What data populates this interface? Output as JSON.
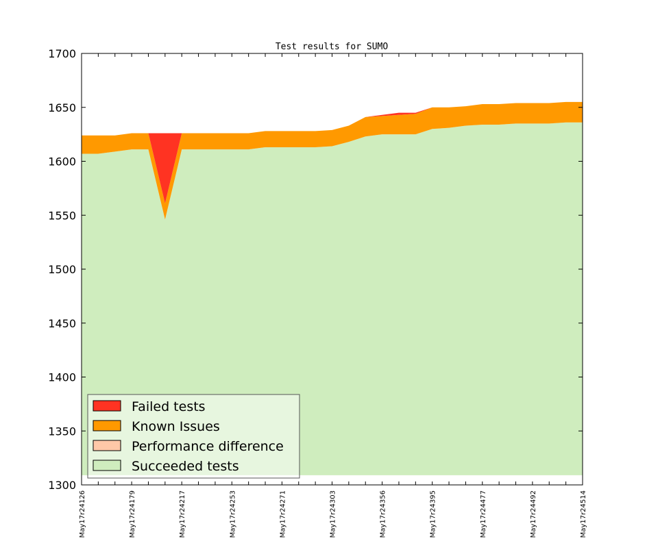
{
  "chart_data": {
    "type": "area",
    "title": "Test results for SUMO",
    "xlabel": "",
    "ylabel": "",
    "ylim": [
      1300,
      1700
    ],
    "yticks": [
      1300,
      1350,
      1400,
      1450,
      1500,
      1550,
      1600,
      1650,
      1700
    ],
    "x_index_range": [
      0,
      30
    ],
    "x_tick_labels": [
      {
        "i": 0,
        "label": "May17r24126"
      },
      {
        "i": 3,
        "label": "May17r24179"
      },
      {
        "i": 6,
        "label": "May17r24217"
      },
      {
        "i": 9,
        "label": "May17r24253"
      },
      {
        "i": 12,
        "label": "May17r24271"
      },
      {
        "i": 15,
        "label": "May17r24303"
      },
      {
        "i": 18,
        "label": "May17r24356"
      },
      {
        "i": 21,
        "label": "May17r24395"
      },
      {
        "i": 24,
        "label": "May17r24477"
      },
      {
        "i": 27,
        "label": "May17r24492"
      },
      {
        "i": 30,
        "label": "May17r24514"
      }
    ],
    "series": [
      {
        "name": "Succeeded tests",
        "color": "#cfedbe",
        "values": [
          1607,
          1607,
          1609,
          1611,
          1611,
          1546,
          1611,
          1611,
          1611,
          1611,
          1611,
          1613,
          1613,
          1613,
          1613,
          1614,
          1618,
          1623,
          1625,
          1625,
          1625,
          1630,
          1631,
          1633,
          1634,
          1634,
          1635,
          1635,
          1635,
          1636,
          1636
        ]
      },
      {
        "name": "Performance difference",
        "color": "#ffc8a8",
        "values": [
          0,
          0,
          0,
          0,
          0,
          0,
          0,
          0,
          0,
          0,
          0,
          0,
          0,
          0,
          0,
          0,
          0,
          0,
          0,
          0,
          0,
          0,
          0,
          0,
          0,
          0,
          0,
          0,
          0,
          0,
          0
        ]
      },
      {
        "name": "Known Issues",
        "color": "#ff9900",
        "values": [
          17,
          17,
          15,
          15,
          15,
          15,
          15,
          15,
          15,
          15,
          15,
          15,
          15,
          15,
          15,
          15,
          15,
          18,
          17,
          18,
          19,
          20,
          19,
          18,
          19,
          19,
          19,
          19,
          19,
          19,
          19
        ]
      },
      {
        "name": "Failed tests",
        "color": "#ff3322",
        "values": [
          0,
          0,
          0,
          0,
          0,
          65,
          0,
          0,
          0,
          0,
          0,
          0,
          0,
          0,
          0,
          0,
          0,
          0,
          1,
          2,
          1,
          0,
          0,
          0,
          0,
          0,
          0,
          0,
          0,
          0,
          0
        ]
      }
    ],
    "legend": {
      "placement": "lower-left",
      "items": [
        {
          "label": "Failed tests",
          "color": "#ff3322"
        },
        {
          "label": "Known Issues",
          "color": "#ff9900"
        },
        {
          "label": "Performance difference",
          "color": "#ffc8a8"
        },
        {
          "label": "Succeeded tests",
          "color": "#cfedbe"
        }
      ]
    },
    "grid": false
  }
}
